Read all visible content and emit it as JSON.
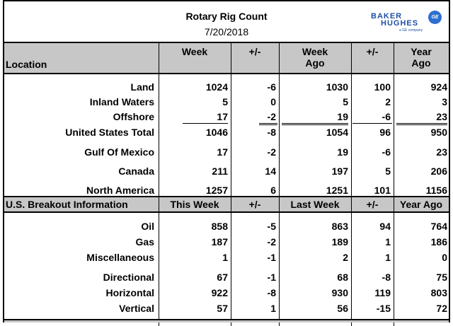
{
  "header": {
    "title": "Rotary Rig Count",
    "date": "7/20/2018",
    "logo_line1": "BAKER",
    "logo_line2": "HUGHES",
    "logo_line3": "a GE company",
    "ge_mark": "GE"
  },
  "section1": {
    "columns": [
      "Location",
      "Week",
      "+/-",
      "Week Ago",
      "+/-",
      "Year Ago"
    ],
    "rows": [
      {
        "label": "Land",
        "week": "1024",
        "chg1": "-6",
        "week_ago": "1030",
        "chg2": "100",
        "year_ago": "924"
      },
      {
        "label": "Inland Waters",
        "week": "5",
        "chg1": "0",
        "week_ago": "5",
        "chg2": "2",
        "year_ago": "3"
      },
      {
        "label": "Offshore",
        "week": "17",
        "chg1": "-2",
        "week_ago": "19",
        "chg2": "-6",
        "year_ago": "23"
      },
      {
        "label": "United States Total",
        "week": "1046",
        "chg1": "-8",
        "week_ago": "1054",
        "chg2": "96",
        "year_ago": "950"
      },
      {
        "label": "Gulf Of Mexico",
        "week": "17",
        "chg1": "-2",
        "week_ago": "19",
        "chg2": "-6",
        "year_ago": "23"
      },
      {
        "label": "Canada",
        "week": "211",
        "chg1": "14",
        "week_ago": "197",
        "chg2": "5",
        "year_ago": "206"
      },
      {
        "label": "North America",
        "week": "1257",
        "chg1": "6",
        "week_ago": "1251",
        "chg2": "101",
        "year_ago": "1156"
      }
    ]
  },
  "section2": {
    "columns": [
      "U.S. Breakout Information",
      "This Week",
      "+/-",
      "Last Week",
      "+/-",
      "Year Ago"
    ],
    "rows": [
      {
        "label": "Oil",
        "week": "858",
        "chg1": "-5",
        "week_ago": "863",
        "chg2": "94",
        "year_ago": "764"
      },
      {
        "label": "Gas",
        "week": "187",
        "chg1": "-2",
        "week_ago": "189",
        "chg2": "1",
        "year_ago": "186"
      },
      {
        "label": "Miscellaneous",
        "week": "1",
        "chg1": "-1",
        "week_ago": "2",
        "chg2": "1",
        "year_ago": "0"
      },
      {
        "label": "Directional",
        "week": "67",
        "chg1": "-1",
        "week_ago": "68",
        "chg2": "-8",
        "year_ago": "75"
      },
      {
        "label": "Horizontal",
        "week": "922",
        "chg1": "-8",
        "week_ago": "930",
        "chg2": "119",
        "year_ago": "803"
      },
      {
        "label": "Vertical",
        "week": "57",
        "chg1": "1",
        "week_ago": "56",
        "chg2": "-15",
        "year_ago": "72"
      }
    ]
  }
}
